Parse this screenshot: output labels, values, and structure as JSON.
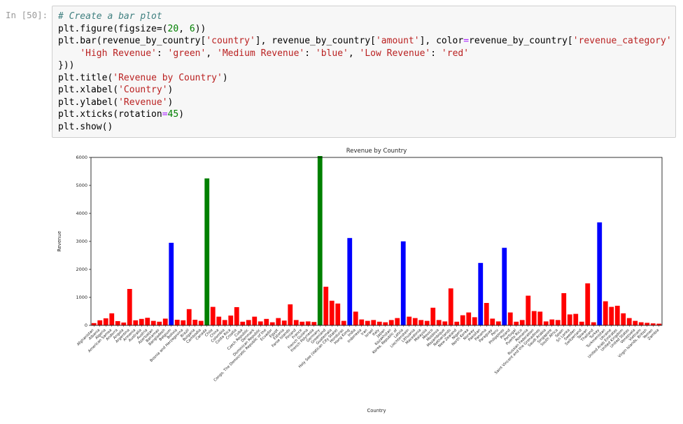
{
  "notebook": {
    "prompt": "In [50]:",
    "code_lines": [
      [
        [
          "# Create a bar plot",
          "c"
        ]
      ],
      [
        [
          "plt.figure(figsize=(",
          "d"
        ],
        [
          "20",
          "n"
        ],
        [
          ", ",
          "d"
        ],
        [
          "6",
          "n"
        ],
        [
          "))",
          "d"
        ]
      ],
      [
        [
          "plt.bar(revenue_by_country[",
          "d"
        ],
        [
          "'country'",
          "s"
        ],
        [
          "], revenue_by_country[",
          "d"
        ],
        [
          "'amount'",
          "s"
        ],
        [
          "], color",
          "d"
        ],
        [
          "=",
          "o"
        ],
        [
          "revenue_by_country[",
          "d"
        ],
        [
          "'revenue_category'",
          "s"
        ],
        [
          "].map({",
          "d"
        ]
      ],
      [
        [
          "    ",
          "d"
        ],
        [
          "'High Revenue'",
          "s"
        ],
        [
          ": ",
          "d"
        ],
        [
          "'green'",
          "s"
        ],
        [
          ", ",
          "d"
        ],
        [
          "'Medium Revenue'",
          "s"
        ],
        [
          ": ",
          "d"
        ],
        [
          "'blue'",
          "s"
        ],
        [
          ", ",
          "d"
        ],
        [
          "'Low Revenue'",
          "s"
        ],
        [
          ": ",
          "d"
        ],
        [
          "'red'",
          "s"
        ]
      ],
      [
        [
          "}))",
          "d"
        ]
      ],
      [
        [
          "plt.title(",
          "d"
        ],
        [
          "'Revenue by Country'",
          "s"
        ],
        [
          ")",
          "d"
        ]
      ],
      [
        [
          "plt.xlabel(",
          "d"
        ],
        [
          "'Country'",
          "s"
        ],
        [
          ")",
          "d"
        ]
      ],
      [
        [
          "plt.ylabel(",
          "d"
        ],
        [
          "'Revenue'",
          "s"
        ],
        [
          ")",
          "d"
        ]
      ],
      [
        [
          "plt.xticks(rotation",
          "d"
        ],
        [
          "=",
          "o"
        ],
        [
          "45",
          "n"
        ],
        [
          ")",
          "d"
        ]
      ],
      [
        [
          "plt.show()",
          "d"
        ]
      ]
    ]
  },
  "chart_data": {
    "type": "bar",
    "title": "Revenue by Country",
    "xlabel": "Country",
    "ylabel": "Revenue",
    "ylim": [
      0,
      6000
    ],
    "yticks": [
      0,
      1000,
      2000,
      3000,
      4000,
      5000,
      6000
    ],
    "grid": false,
    "legend": "none",
    "colors": {
      "red": "#ff0000",
      "green": "#008000",
      "blue": "#0000ff"
    },
    "category_colors": {
      "High Revenue": "green",
      "Medium Revenue": "blue",
      "Low Revenue": "red"
    },
    "bars": [
      [
        "Afghanistan",
        80,
        "red"
      ],
      [
        "Albania",
        180,
        "red"
      ],
      [
        "Algeria",
        250,
        "red"
      ],
      [
        "American Samoa",
        430,
        "red"
      ],
      [
        "Andorra",
        150,
        "red"
      ],
      [
        "Angola",
        100,
        "red"
      ],
      [
        "Argentina",
        1300,
        "red"
      ],
      [
        "Armenia",
        180,
        "red"
      ],
      [
        "Australia",
        230,
        "red"
      ],
      [
        "Austria",
        270,
        "red"
      ],
      [
        "Azerbaijan",
        160,
        "red"
      ],
      [
        "Bahamas",
        130,
        "red"
      ],
      [
        "Bangladesh",
        240,
        "red"
      ],
      [
        "Belgium",
        2950,
        "blue"
      ],
      [
        "Bolivia",
        200,
        "red"
      ],
      [
        "Bosnia and Herzegovina",
        180,
        "red"
      ],
      [
        "Brazil",
        580,
        "red"
      ],
      [
        "Bulgaria",
        200,
        "red"
      ],
      [
        "Cambodia",
        160,
        "red"
      ],
      [
        "Canada",
        5250,
        "green"
      ],
      [
        "Chile",
        660,
        "red"
      ],
      [
        "China",
        310,
        "red"
      ],
      [
        "Colombia",
        190,
        "red"
      ],
      [
        "Costa Rica",
        350,
        "red"
      ],
      [
        "Croatia",
        650,
        "red"
      ],
      [
        "Cuba",
        130,
        "red"
      ],
      [
        "Czech Republic",
        190,
        "red"
      ],
      [
        "Denmark",
        310,
        "red"
      ],
      [
        "Dominican Republic",
        140,
        "red"
      ],
      [
        "Congo, The Democratic Republic of the",
        230,
        "red"
      ],
      [
        "Ecuador",
        110,
        "red"
      ],
      [
        "Egypt",
        260,
        "red"
      ],
      [
        "Estonia",
        170,
        "red"
      ],
      [
        "Faroe Islands",
        750,
        "red"
      ],
      [
        "Finland",
        190,
        "red"
      ],
      [
        "France",
        130,
        "red"
      ],
      [
        "French Guiana",
        140,
        "red"
      ],
      [
        "French Polynesia",
        120,
        "red"
      ],
      [
        "Germany",
        6050,
        "green"
      ],
      [
        "Greenland",
        1380,
        "red"
      ],
      [
        "Guatemala",
        880,
        "red"
      ],
      [
        "Holy See (Vatican City State)",
        780,
        "red"
      ],
      [
        "Honduras",
        160,
        "red"
      ],
      [
        "Hong Kong",
        3120,
        "blue"
      ],
      [
        "India",
        490,
        "red"
      ],
      [
        "Indonesia",
        210,
        "red"
      ],
      [
        "Iran",
        160,
        "red"
      ],
      [
        "Israel",
        190,
        "red"
      ],
      [
        "Italy",
        130,
        "red"
      ],
      [
        "Japan",
        110,
        "red"
      ],
      [
        "Kazakhstan",
        190,
        "red"
      ],
      [
        "Korea, Republic of",
        260,
        "red"
      ],
      [
        "Latvia",
        3000,
        "blue"
      ],
      [
        "Liechtenstein",
        310,
        "red"
      ],
      [
        "Lithuania",
        260,
        "red"
      ],
      [
        "Macedonia",
        190,
        "red"
      ],
      [
        "Malaysia",
        160,
        "red"
      ],
      [
        "Mexico",
        630,
        "red"
      ],
      [
        "Moldova",
        190,
        "red"
      ],
      [
        "Mozambique",
        140,
        "red"
      ],
      [
        "Netherlands",
        1320,
        "red"
      ],
      [
        "New Zealand",
        130,
        "red"
      ],
      [
        "Nigeria",
        360,
        "red"
      ],
      [
        "North Korea",
        460,
        "red"
      ],
      [
        "Norway",
        290,
        "red"
      ],
      [
        "Pakistan",
        2230,
        "blue"
      ],
      [
        "Panama",
        800,
        "red"
      ],
      [
        "Paraguay",
        240,
        "red"
      ],
      [
        "Peru",
        140,
        "red"
      ],
      [
        "Philippines",
        2770,
        "blue"
      ],
      [
        "Poland",
        460,
        "red"
      ],
      [
        "Portugal",
        130,
        "red"
      ],
      [
        "Puerto Rico",
        190,
        "red"
      ],
      [
        "Romania",
        1060,
        "red"
      ],
      [
        "Russian Federation",
        510,
        "red"
      ],
      [
        "Saint Vincent and the Grenadines",
        490,
        "red"
      ],
      [
        "Saudi Arabia",
        140,
        "red"
      ],
      [
        "Singapore",
        210,
        "red"
      ],
      [
        "South Africa",
        190,
        "red"
      ],
      [
        "Spain",
        1150,
        "red"
      ],
      [
        "Sri Lanka",
        390,
        "red"
      ],
      [
        "Sweden",
        410,
        "red"
      ],
      [
        "Switzerland",
        130,
        "red"
      ],
      [
        "Taiwan",
        1500,
        "red"
      ],
      [
        "Thailand",
        110,
        "red"
      ],
      [
        "Turkey",
        3680,
        "blue"
      ],
      [
        "Turkmenistan",
        860,
        "red"
      ],
      [
        "Ukraine",
        660,
        "red"
      ],
      [
        "United Arab Emirates",
        700,
        "red"
      ],
      [
        "United Kingdom",
        430,
        "red"
      ],
      [
        "United States",
        260,
        "red"
      ],
      [
        "Venezuela",
        160,
        "red"
      ],
      [
        "Vietnam",
        110,
        "red"
      ],
      [
        "Virgin Islands, British",
        90,
        "red"
      ],
      [
        "Yemen",
        70,
        "red"
      ],
      [
        "Zambia",
        60,
        "red"
      ]
    ]
  }
}
